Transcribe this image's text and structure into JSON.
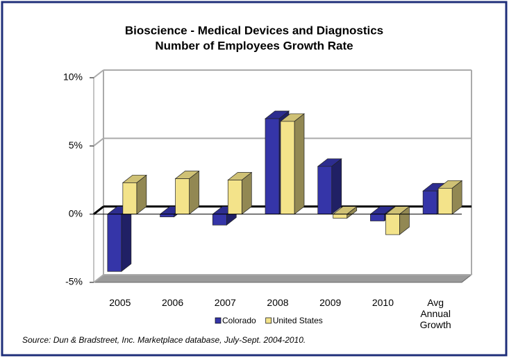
{
  "chart_data": {
    "type": "bar3d",
    "title": [
      "Bioscience - Medical Devices and Diagnostics",
      "Number of Employees Growth Rate"
    ],
    "categories": [
      "2005",
      "2006",
      "2007",
      "2008",
      "2009",
      "2010",
      "Avg Annual Growth"
    ],
    "series": [
      {
        "name": "Colorado",
        "color": "#3535a8",
        "values": [
          -4.2,
          -0.2,
          -0.8,
          7.0,
          3.5,
          -0.5,
          1.7
        ]
      },
      {
        "name": "United States",
        "color": "#f3e38a",
        "values": [
          2.3,
          2.6,
          2.5,
          6.8,
          -0.3,
          -1.5,
          1.9
        ]
      }
    ],
    "ylim": [
      -5,
      10
    ],
    "yticks": [
      {
        "value": -5,
        "label": "-5%"
      },
      {
        "value": 0,
        "label": "0%"
      },
      {
        "value": 5,
        "label": "5%"
      },
      {
        "value": 10,
        "label": "10%"
      }
    ],
    "grid": true,
    "legend": "bottom",
    "source": "Source: Dun & Bradstreet, Inc. Marketplace database, July-Sept. 2004-2010."
  }
}
